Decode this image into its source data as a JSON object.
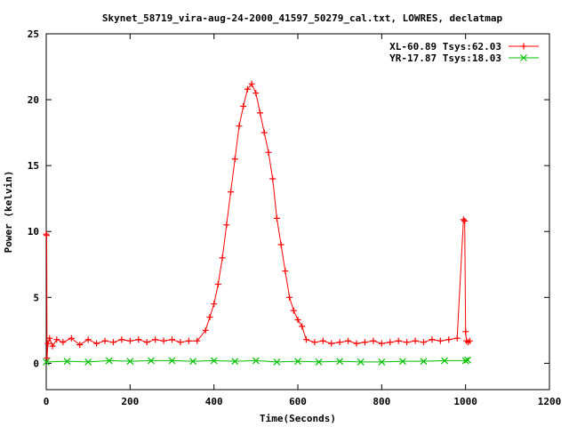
{
  "chart_data": {
    "type": "line",
    "title": "Skynet_58719_vira-aug-24-2000_41597_50279_cal.txt, LOWRES, declatmap",
    "xlabel": "Time(Seconds)",
    "ylabel": "Power (kelvin)",
    "xlim": [
      0,
      1200
    ],
    "ylim": [
      -2,
      25
    ],
    "x_ticks": [
      "0",
      "200",
      "400",
      "600",
      "800",
      "1000",
      "1200"
    ],
    "y_ticks": [
      "0",
      "5",
      "10",
      "15",
      "20",
      "25"
    ],
    "legend_position": "top-right",
    "series": [
      {
        "name": "XL-60.89 Tsys:62.03",
        "color": "#ff0000",
        "marker": "plus",
        "x": [
          0,
          1,
          2,
          4,
          8,
          15,
          25,
          40,
          60,
          80,
          100,
          120,
          140,
          160,
          180,
          200,
          220,
          240,
          260,
          280,
          300,
          320,
          340,
          360,
          380,
          390,
          400,
          410,
          420,
          430,
          440,
          450,
          460,
          470,
          480,
          490,
          500,
          510,
          520,
          530,
          540,
          550,
          560,
          570,
          580,
          590,
          600,
          610,
          620,
          640,
          660,
          680,
          700,
          720,
          740,
          760,
          780,
          800,
          820,
          840,
          860,
          880,
          900,
          920,
          940,
          960,
          980,
          995,
          998,
          1000,
          1002,
          1006,
          1010
        ],
        "y": [
          9.8,
          9.7,
          0.4,
          1.5,
          1.9,
          1.3,
          1.8,
          1.6,
          1.9,
          1.4,
          1.8,
          1.5,
          1.7,
          1.6,
          1.8,
          1.7,
          1.8,
          1.6,
          1.8,
          1.7,
          1.8,
          1.6,
          1.7,
          1.7,
          2.5,
          3.5,
          4.5,
          6.0,
          8.0,
          10.5,
          13.0,
          15.5,
          18.0,
          19.5,
          20.8,
          21.2,
          20.5,
          19.0,
          17.5,
          16.0,
          14.0,
          11.0,
          9.0,
          7.0,
          5.0,
          4.0,
          3.3,
          2.8,
          1.8,
          1.6,
          1.7,
          1.5,
          1.6,
          1.7,
          1.5,
          1.6,
          1.7,
          1.5,
          1.6,
          1.7,
          1.6,
          1.7,
          1.6,
          1.8,
          1.7,
          1.8,
          1.9,
          10.9,
          10.8,
          2.4,
          1.7,
          1.6,
          1.7
        ]
      },
      {
        "name": "YR-17.87 Tsys:18.03",
        "color": "#00c000",
        "marker": "cross",
        "x": [
          0,
          50,
          100,
          150,
          200,
          250,
          300,
          350,
          400,
          450,
          500,
          550,
          600,
          650,
          700,
          750,
          800,
          850,
          900,
          950,
          1000,
          1005
        ],
        "y": [
          0.1,
          0.15,
          0.1,
          0.2,
          0.15,
          0.2,
          0.2,
          0.15,
          0.2,
          0.15,
          0.2,
          0.1,
          0.15,
          0.1,
          0.15,
          0.1,
          0.1,
          0.15,
          0.15,
          0.2,
          0.2,
          0.25
        ]
      }
    ]
  }
}
